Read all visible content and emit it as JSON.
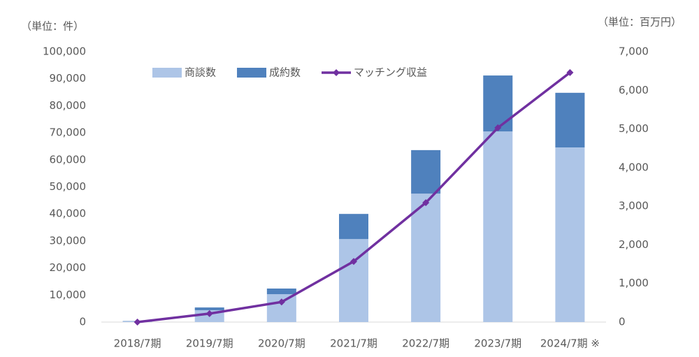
{
  "chart_data": {
    "type": "bar",
    "stacked": true,
    "left_unit": "（単位：件）",
    "right_unit": "（単位：百万円）",
    "categories": [
      "2018/7期",
      "2019/7期",
      "2020/7期",
      "2021/7期",
      "2022/7期",
      "2023/7期",
      "2024/7期 ※"
    ],
    "series": [
      {
        "name": "商談数",
        "color": "#adc5e7",
        "values": [
          300,
          4400,
          10300,
          30700,
          47500,
          70500,
          64600
        ]
      },
      {
        "name": "成約数",
        "color": "#4f81bd",
        "values": [
          100,
          1000,
          2100,
          9300,
          16100,
          20700,
          20200
        ]
      },
      {
        "name": "マッチング収益",
        "color": "#7030a0",
        "type": "line",
        "axis": "y2",
        "values": [
          0,
          220,
          520,
          1570,
          3090,
          5030,
          6460
        ]
      }
    ],
    "ylim": [
      0,
      100000
    ],
    "yticks": [
      0,
      {
        "value": 10000,
        "label": "10,000"
      },
      {
        "value": 20000,
        "label": "20,000"
      },
      {
        "value": 30000,
        "label": "30,000"
      },
      {
        "value": 40000,
        "label": "40,000"
      },
      {
        "value": 50000,
        "label": "50,000"
      },
      {
        "value": 60000,
        "label": "60,000"
      },
      {
        "value": 70000,
        "label": "70,000"
      },
      {
        "value": 80000,
        "label": "80,000"
      },
      {
        "value": 90000,
        "label": "90,000"
      },
      {
        "value": 100000,
        "label": "100,000"
      }
    ],
    "y2lim": [
      0,
      7000
    ],
    "y2ticks": [
      0,
      {
        "value": 1000,
        "label": "1,000"
      },
      {
        "value": 2000,
        "label": "2,000"
      },
      {
        "value": 3000,
        "label": "3,000"
      },
      {
        "value": 4000,
        "label": "4,000"
      },
      {
        "value": 5000,
        "label": "5,000"
      },
      {
        "value": 6000,
        "label": "6,000"
      },
      {
        "value": 7000,
        "label": "7,000"
      }
    ],
    "grid": false,
    "legend": "top"
  }
}
